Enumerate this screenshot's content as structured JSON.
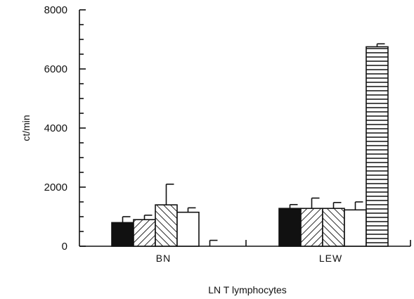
{
  "chart_data": {
    "type": "bar",
    "title": "",
    "xlabel": "LN T lymphocytes",
    "ylabel": "ct/min",
    "ylim": [
      0,
      8000
    ],
    "yticks": [
      0,
      2000,
      4000,
      6000,
      8000
    ],
    "ytick_labels": [
      "0",
      "2000",
      "4000",
      "6000",
      "8000"
    ],
    "grid": false,
    "legend": "none",
    "categories": [
      "BN",
      "LEW"
    ],
    "series": [
      {
        "pattern": "solid",
        "values": [
          800,
          1280
        ],
        "errors": [
          200,
          130
        ]
      },
      {
        "pattern": "diagonal-right",
        "values": [
          900,
          1280
        ],
        "errors": [
          150,
          350
        ]
      },
      {
        "pattern": "diagonal-left",
        "values": [
          1400,
          1280
        ],
        "errors": [
          700,
          200
        ]
      },
      {
        "pattern": "open",
        "values": [
          1150,
          1230
        ],
        "errors": [
          150,
          270
        ]
      },
      {
        "pattern": "horizontal",
        "values": [
          0,
          6750
        ],
        "errors": [
          200,
          100
        ]
      }
    ]
  }
}
